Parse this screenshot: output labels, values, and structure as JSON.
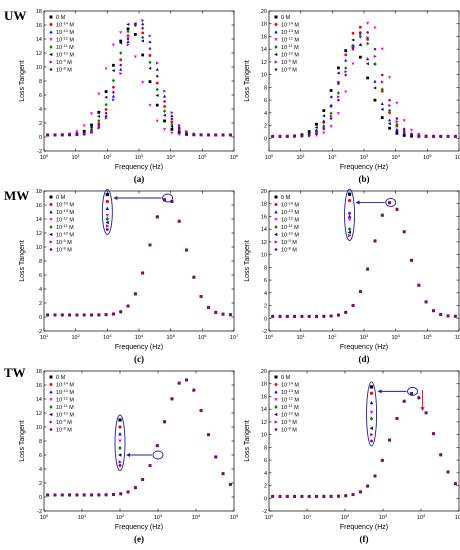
{
  "row_labels": [
    "UW",
    "MW",
    "TW"
  ],
  "legend_conc": [
    "0 M",
    "10^-14 M",
    "10^-13 M",
    "10^-12 M",
    "10^-11 M",
    "10^-10 M",
    "10^-9 M",
    "10^-8 M"
  ],
  "series_colors": [
    "#000000",
    "#ff0000",
    "#0000ff",
    "#ff00ff",
    "#008000",
    "#000080",
    "#9900cc",
    "#990066"
  ],
  "marker_shapes": [
    "square",
    "circle",
    "triangle-up",
    "triangle-down",
    "diamond",
    "triangle-left",
    "triangle-right",
    "hexagon"
  ],
  "annotation_color": "#1b1bb3",
  "arrow_red_color": "#ff0000",
  "chart_data": [
    {
      "id": "a",
      "label": "(a)",
      "type": "scatter",
      "xlabel": "Frequency (Hz)",
      "ylabel": "Loss Tangent",
      "xscale": "log",
      "xlim": [
        1,
        1000000
      ],
      "ylim": [
        -2,
        18
      ],
      "yticks": [
        -2,
        0,
        2,
        4,
        6,
        8,
        10,
        12,
        14,
        16,
        18
      ],
      "xticks": [
        1,
        10,
        100,
        1000,
        10000,
        100000,
        1000000
      ],
      "legend": "top-left",
      "n_series": 8,
      "base": {
        "peak_x": 600,
        "peak_y": 16.5,
        "width": 0.5
      },
      "peaks": [
        {
          "x": 500,
          "y": 15.5
        },
        {
          "x": 800,
          "y": 16
        },
        {
          "x": 1000,
          "y": 16.5
        },
        {
          "x": 300,
          "y": 15
        },
        {
          "x": 700,
          "y": 16
        },
        {
          "x": 600,
          "y": 16.5
        },
        {
          "x": 1100,
          "y": 16.8
        },
        {
          "x": 900,
          "y": 16.2
        }
      ]
    },
    {
      "id": "b",
      "label": "(b)",
      "type": "scatter",
      "xlabel": "Frequency (Hz)",
      "ylabel": "Loss Tangent",
      "xscale": "log",
      "xlim": [
        1,
        1000000
      ],
      "ylim": [
        -2,
        20
      ],
      "yticks": [
        0,
        2,
        4,
        6,
        8,
        10,
        12,
        14,
        16,
        18,
        20
      ],
      "xticks": [
        1,
        10,
        100,
        1000,
        10000,
        100000,
        1000000
      ],
      "legend": "top-left",
      "n_series": 8,
      "peaks": [
        {
          "x": 400,
          "y": 14.5
        },
        {
          "x": 700,
          "y": 17.5
        },
        {
          "x": 600,
          "y": 15
        },
        {
          "x": 1500,
          "y": 18.2
        },
        {
          "x": 800,
          "y": 16
        },
        {
          "x": 500,
          "y": 15.5
        },
        {
          "x": 900,
          "y": 16.5
        },
        {
          "x": 1000,
          "y": 17
        }
      ]
    },
    {
      "id": "c",
      "label": "(c)",
      "type": "scatter",
      "xlabel": "Frequency (Hz)",
      "ylabel": "Loss Tangent",
      "xscale": "log",
      "xlim": [
        10,
        10000000
      ],
      "ylim": [
        -2,
        18
      ],
      "yticks": [
        -2,
        0,
        2,
        4,
        6,
        8,
        10,
        12,
        14,
        16,
        18
      ],
      "xticks": [
        10,
        100,
        1000,
        10000,
        100000,
        1000000,
        10000000
      ],
      "legend": "top-left",
      "n_series": 8,
      "peaks": [
        {
          "x": 80000,
          "y": 17
        },
        {
          "x": 80000,
          "y": 17
        },
        {
          "x": 80000,
          "y": 17
        },
        {
          "x": 80000,
          "y": 17
        },
        {
          "x": 80000,
          "y": 17
        },
        {
          "x": 80000,
          "y": 17
        },
        {
          "x": 80000,
          "y": 17
        },
        {
          "x": 80000,
          "y": 17
        }
      ],
      "annotation": {
        "ellipse_x": 1000,
        "ellipse_values": [
          17.5,
          16.5,
          15.5,
          14.5,
          14,
          13.5,
          13,
          12.5
        ],
        "target_x": 80000,
        "target_y": 17
      }
    },
    {
      "id": "d",
      "label": "(d)",
      "type": "scatter",
      "xlabel": "Frequency (Hz)",
      "ylabel": "Loss Tangent",
      "xscale": "log",
      "xlim": [
        1,
        1000000
      ],
      "ylim": [
        -2,
        20
      ],
      "yticks": [
        -2,
        0,
        2,
        4,
        6,
        8,
        10,
        12,
        14,
        16,
        18,
        20
      ],
      "xticks": [
        1,
        10,
        100,
        1000,
        10000,
        100000,
        1000000
      ],
      "legend": "top-left",
      "n_series": 8,
      "peaks": [
        {
          "x": 7000,
          "y": 18.2
        },
        {
          "x": 7000,
          "y": 18.2
        },
        {
          "x": 7000,
          "y": 18.2
        },
        {
          "x": 7000,
          "y": 18.2
        },
        {
          "x": 7000,
          "y": 18.2
        },
        {
          "x": 7000,
          "y": 18.2
        },
        {
          "x": 7000,
          "y": 18.2
        },
        {
          "x": 7000,
          "y": 18.2
        }
      ],
      "annotation": {
        "ellipse_x": 350,
        "ellipse_values": [
          19.5,
          18.5,
          16,
          15.5,
          14,
          13.5,
          13,
          16.5
        ],
        "target_x": 7000,
        "target_y": 18.2
      }
    },
    {
      "id": "e",
      "label": "(e)",
      "type": "scatter",
      "xlabel": "Frequency (Hz)",
      "ylabel": "Loss Tangent",
      "xscale": "log",
      "xlim": [
        1,
        100000
      ],
      "ylim": [
        -2,
        18
      ],
      "yticks": [
        -2,
        0,
        2,
        4,
        6,
        8,
        10,
        12,
        14,
        16,
        18
      ],
      "xticks": [
        1,
        10,
        100,
        1000,
        10000,
        100000
      ],
      "legend": "top-left",
      "n_series": 8,
      "peaks": [
        {
          "x": 5000,
          "y": 16.8
        },
        {
          "x": 5000,
          "y": 16.8
        },
        {
          "x": 5000,
          "y": 16.8
        },
        {
          "x": 5000,
          "y": 16.8
        },
        {
          "x": 5000,
          "y": 16.8
        },
        {
          "x": 5000,
          "y": 16.8
        },
        {
          "x": 5000,
          "y": 16.8
        },
        {
          "x": 5000,
          "y": 16.8
        }
      ],
      "annotation": {
        "ellipse_x": 100,
        "ellipse_values": [
          11,
          10,
          9,
          8,
          7,
          6,
          5,
          4.5
        ],
        "target_x": 1000,
        "target_y": 6
      }
    },
    {
      "id": "f",
      "label": "(f)",
      "type": "scatter",
      "xlabel": "Frequency (Hz)",
      "ylabel": "Loss Tangent",
      "xscale": "log",
      "xlim": [
        1,
        100000
      ],
      "ylim": [
        -2,
        20
      ],
      "yticks": [
        -2,
        0,
        2,
        4,
        6,
        8,
        10,
        12,
        14,
        16,
        18,
        20
      ],
      "xticks": [
        1,
        10,
        100,
        1000,
        10000,
        100000
      ],
      "legend": "top-left",
      "n_series": 8,
      "peaks": [
        {
          "x": 6000,
          "y": 16.5
        },
        {
          "x": 6000,
          "y": 16.5
        },
        {
          "x": 6000,
          "y": 16.5
        },
        {
          "x": 6000,
          "y": 16.5
        },
        {
          "x": 6000,
          "y": 16.5
        },
        {
          "x": 6000,
          "y": 16.5
        },
        {
          "x": 6000,
          "y": 16.5
        },
        {
          "x": 6000,
          "y": 16.5
        }
      ],
      "annotation": {
        "ellipse_x": 500,
        "ellipse_values": [
          17.5,
          16.5,
          15,
          13.5,
          12.5,
          11,
          10,
          9
        ],
        "target_x": 6000,
        "target_y": 16.8,
        "red_arrow_from_y": 17,
        "red_arrow_to_y": 14
      }
    }
  ]
}
